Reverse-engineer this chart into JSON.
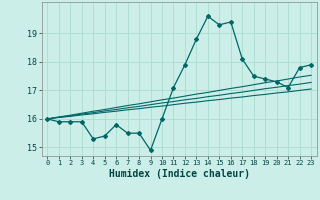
{
  "title": "",
  "xlabel": "Humidex (Indice chaleur)",
  "ylabel": "",
  "bg_color": "#cceee8",
  "line_color": "#006666",
  "grid_color": "#aaddcc",
  "ylim": [
    14.7,
    20.1
  ],
  "xlim": [
    -0.5,
    23.5
  ],
  "yticks": [
    15,
    16,
    17,
    18,
    19
  ],
  "xticks": [
    0,
    1,
    2,
    3,
    4,
    5,
    6,
    7,
    8,
    9,
    10,
    11,
    12,
    13,
    14,
    15,
    16,
    17,
    18,
    19,
    20,
    21,
    22,
    23
  ],
  "main_series": [
    16.0,
    15.9,
    15.9,
    15.9,
    15.3,
    15.4,
    15.8,
    15.5,
    15.5,
    14.9,
    16.0,
    17.1,
    17.9,
    18.8,
    19.6,
    19.3,
    19.4,
    18.1,
    17.5,
    17.4,
    17.3,
    17.1,
    17.8,
    17.9
  ],
  "line1": [
    16.0,
    16.07,
    16.13,
    16.2,
    16.27,
    16.33,
    16.4,
    16.47,
    16.53,
    16.6,
    16.67,
    16.73,
    16.8,
    16.87,
    16.93,
    17.0,
    17.07,
    17.13,
    17.2,
    17.27,
    17.33,
    17.4,
    17.47,
    17.53
  ],
  "line2": [
    16.0,
    16.06,
    16.11,
    16.17,
    16.22,
    16.28,
    16.33,
    16.39,
    16.44,
    16.5,
    16.56,
    16.61,
    16.67,
    16.72,
    16.78,
    16.83,
    16.89,
    16.94,
    17.0,
    17.06,
    17.11,
    17.17,
    17.22,
    17.28
  ],
  "line3": [
    16.0,
    16.05,
    16.09,
    16.14,
    16.18,
    16.23,
    16.27,
    16.32,
    16.36,
    16.41,
    16.45,
    16.5,
    16.55,
    16.59,
    16.64,
    16.68,
    16.73,
    16.77,
    16.82,
    16.86,
    16.91,
    16.95,
    17.0,
    17.05
  ]
}
